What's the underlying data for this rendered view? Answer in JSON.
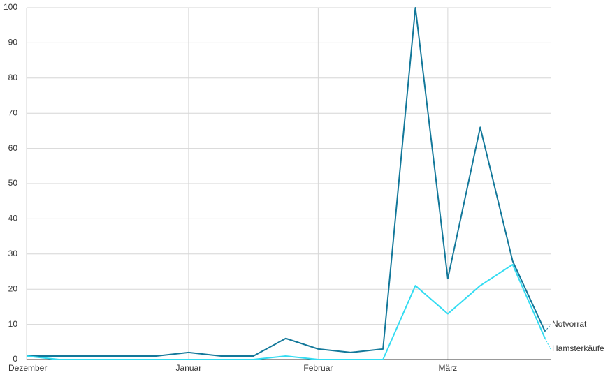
{
  "chart_data": {
    "type": "line",
    "x": [
      0,
      1,
      2,
      3,
      4,
      5,
      6,
      7,
      8,
      9,
      10,
      11,
      12,
      13,
      14,
      15,
      16
    ],
    "xlim": [
      0,
      16
    ],
    "xticks": [
      {
        "value": 0,
        "label": "Dezember"
      },
      {
        "value": 5,
        "label": "Januar"
      },
      {
        "value": 9,
        "label": "Februar"
      },
      {
        "value": 13,
        "label": "März"
      }
    ],
    "ylim": [
      0,
      100
    ],
    "yticks": [
      0,
      10,
      20,
      30,
      40,
      50,
      60,
      70,
      80,
      90,
      100
    ],
    "grid": true,
    "series": [
      {
        "name": "Notvorrat",
        "color": "#13789a",
        "values": [
          1,
          1,
          1,
          1,
          1,
          2,
          1,
          1,
          6,
          3,
          2,
          3,
          100,
          23,
          66,
          28,
          8
        ]
      },
      {
        "name": "Hamsterkäufe",
        "color": "#33dcf2",
        "values": [
          1,
          0,
          0,
          0,
          0,
          0,
          0,
          0,
          1,
          0,
          0,
          0,
          21,
          13,
          21,
          27,
          6
        ]
      }
    ]
  }
}
